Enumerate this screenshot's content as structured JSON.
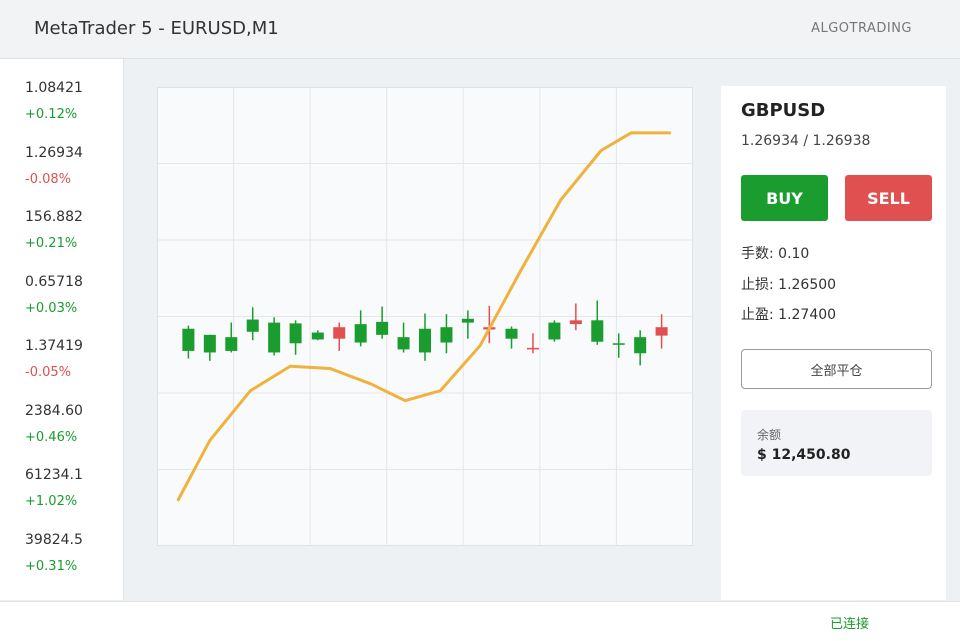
{
  "header": {
    "title": "MetaTrader 5 - EURUSD,M1",
    "brand": "ALGOTRADING"
  },
  "watchlist": [
    {
      "price": "1.08421",
      "change": "+0.12%"
    },
    {
      "price": "1.26934",
      "change": "-0.08%"
    },
    {
      "price": "156.882",
      "change": "+0.21%"
    },
    {
      "price": "0.65718",
      "change": "+0.03%"
    },
    {
      "price": "1.37419",
      "change": "-0.05%"
    },
    {
      "price": "2384.60",
      "change": "+0.46%"
    },
    {
      "price": "61234.1",
      "change": "+1.02%"
    },
    {
      "price": "39824.5",
      "change": "+0.31%"
    }
  ],
  "chart_data": {
    "type": "candlestick",
    "xlim": [
      0,
      7
    ],
    "ylim": [
      0,
      6
    ],
    "xticks": [
      0,
      1,
      2,
      3,
      4,
      5,
      6,
      7
    ],
    "yticks": [
      0,
      1,
      2,
      3,
      4,
      5,
      6
    ],
    "grid": true,
    "up_color": "#1a9c2e",
    "down_color": "#e05050",
    "x": [
      0.41,
      0.69,
      0.97,
      1.25,
      1.53,
      1.81,
      2.1,
      2.38,
      2.66,
      2.94,
      3.22,
      3.5,
      3.78,
      4.06,
      4.34,
      4.63,
      4.91,
      5.19,
      5.47,
      5.75,
      6.03,
      6.31,
      6.59
    ],
    "open": [
      2.55,
      2.53,
      2.55,
      2.8,
      2.53,
      2.65,
      2.7,
      2.86,
      2.66,
      2.76,
      2.57,
      2.53,
      2.66,
      2.92,
      2.86,
      2.71,
      2.59,
      2.7,
      2.95,
      2.67,
      2.63,
      2.52,
      2.86
    ],
    "high": [
      2.88,
      2.76,
      2.92,
      3.12,
      2.99,
      2.95,
      2.82,
      2.92,
      3.08,
      3.13,
      2.92,
      3.04,
      3.03,
      3.08,
      3.14,
      2.87,
      2.78,
      2.95,
      3.17,
      3.21,
      2.78,
      2.82,
      3.03
    ],
    "low": [
      2.45,
      2.42,
      2.53,
      2.69,
      2.49,
      2.5,
      2.69,
      2.55,
      2.61,
      2.71,
      2.53,
      2.42,
      2.52,
      2.71,
      2.65,
      2.58,
      2.52,
      2.67,
      2.82,
      2.63,
      2.46,
      2.36,
      2.58
    ],
    "close": [
      2.84,
      2.76,
      2.73,
      2.96,
      2.92,
      2.91,
      2.79,
      2.71,
      2.9,
      2.93,
      2.73,
      2.84,
      2.86,
      2.97,
      2.83,
      2.84,
      2.57,
      2.92,
      2.9,
      2.95,
      2.65,
      2.73,
      2.75
    ],
    "line": {
      "color": "#f0b23c",
      "x": [
        0.27,
        0.69,
        1.22,
        1.74,
        2.26,
        2.79,
        3.24,
        3.7,
        4.22,
        4.75,
        5.27,
        5.8,
        6.19,
        6.71
      ],
      "y": [
        0.59,
        1.38,
        2.03,
        2.35,
        2.32,
        2.12,
        1.9,
        2.03,
        2.62,
        3.6,
        4.52,
        5.17,
        5.4,
        5.4
      ]
    }
  },
  "order_panel": {
    "symbol": "GBPUSD",
    "quote": "1.26934 / 1.26938",
    "buy": "BUY",
    "sell": "SELL",
    "fields": [
      "手数: 0.10",
      "止损: 1.26500",
      "止盈: 1.27400"
    ],
    "close_all": "全部平仓",
    "balance_label": "余额",
    "balance": "$ 12,450.80"
  },
  "status": "已连接"
}
